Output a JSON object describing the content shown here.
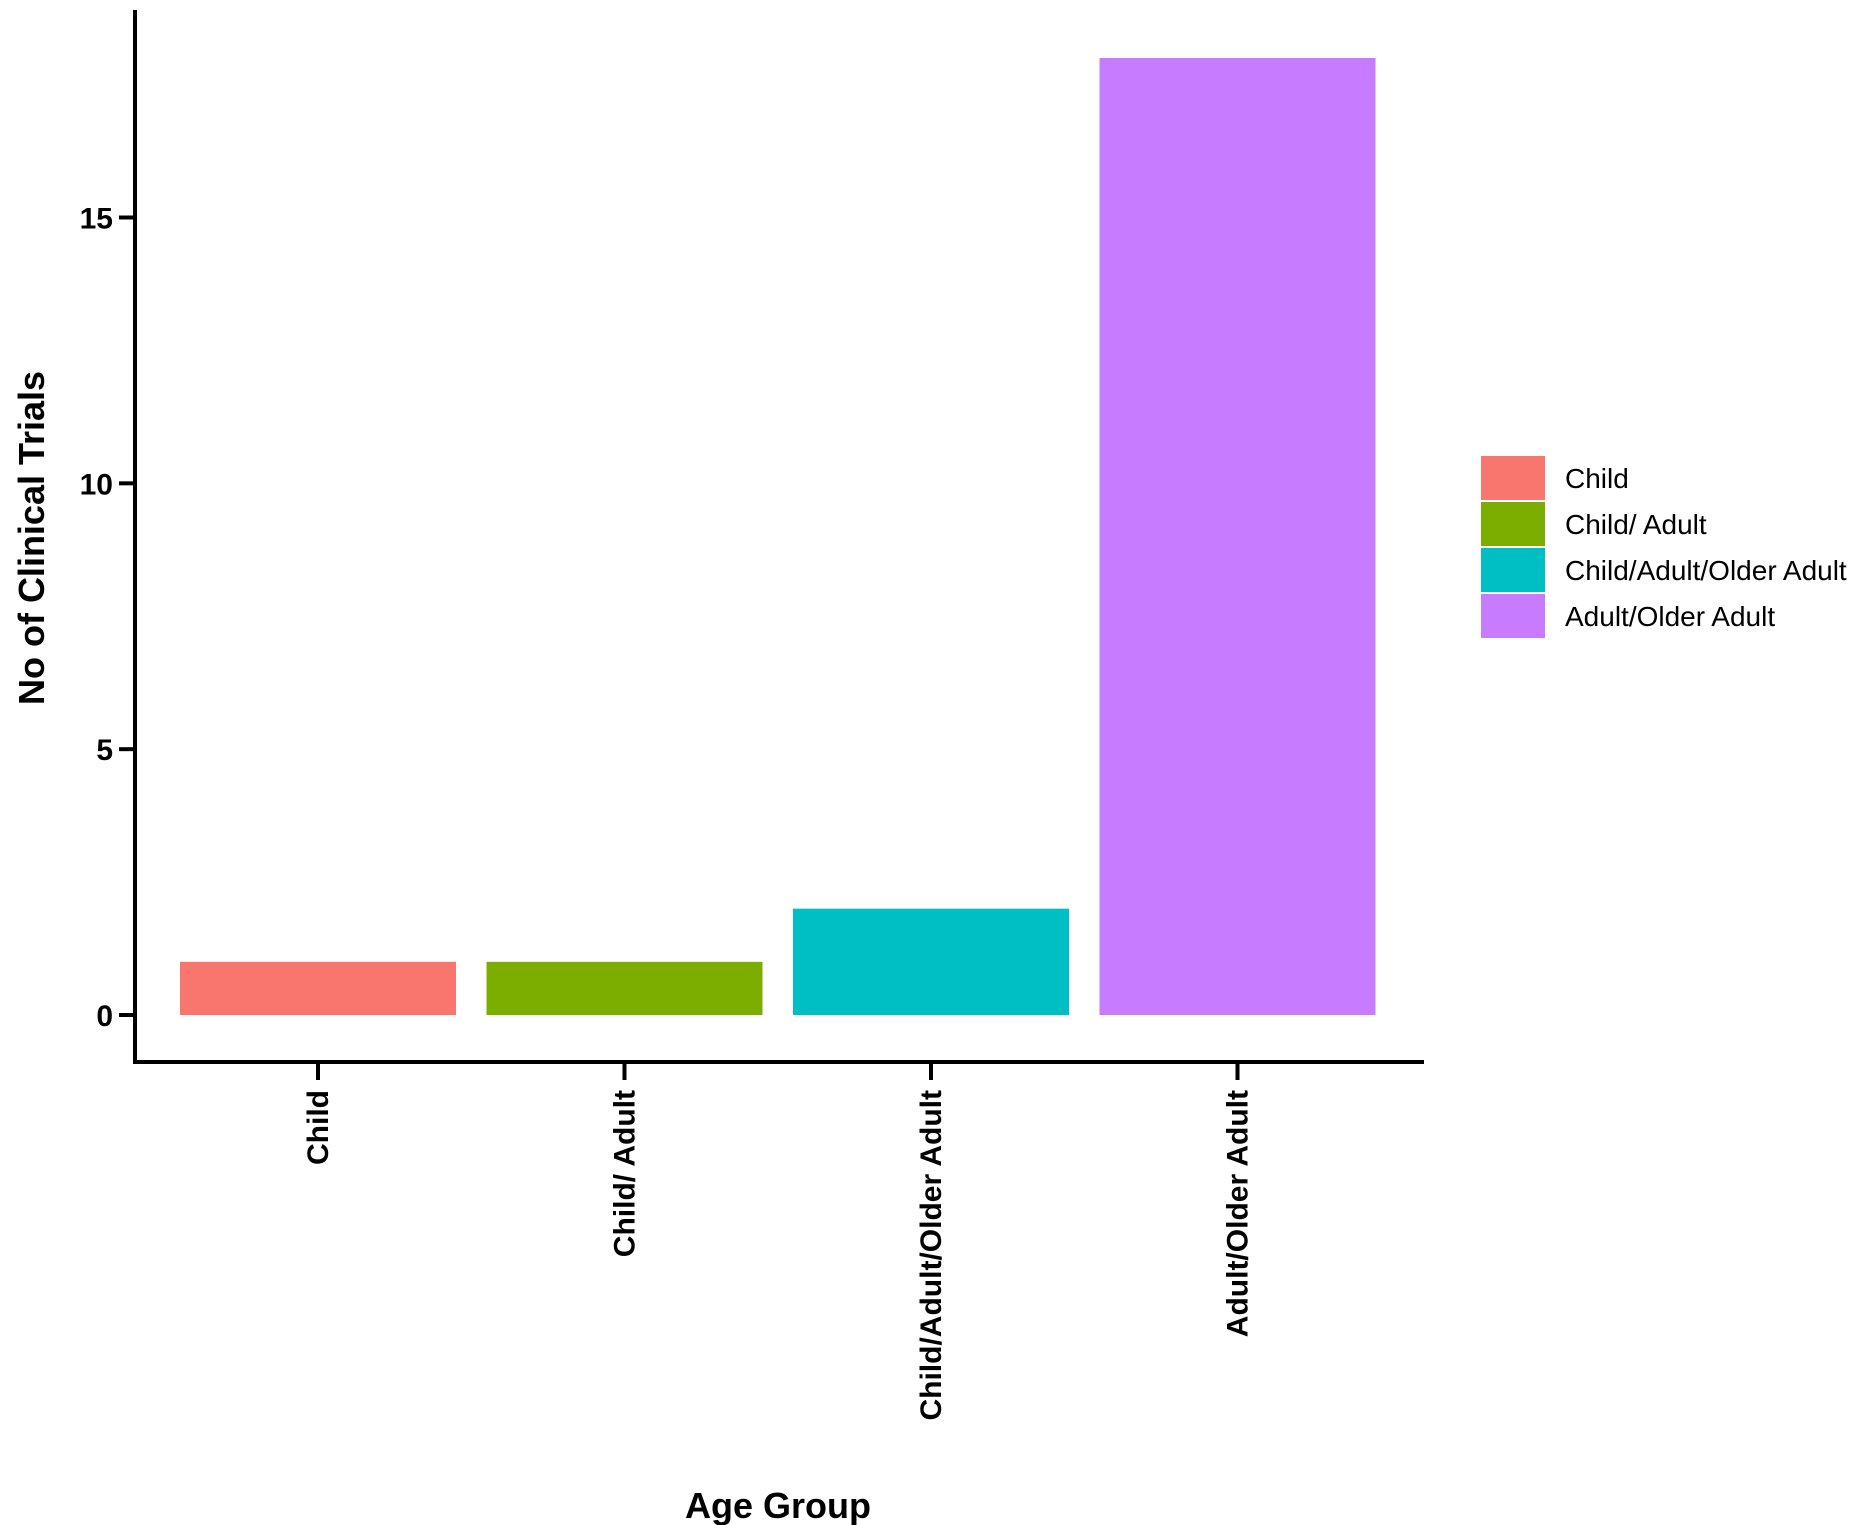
{
  "chart_data": {
    "type": "bar",
    "categories": [
      "Child",
      "Child/ Adult",
      "Child/Adult/Older Adult",
      "Adult/Older Adult"
    ],
    "values": [
      1,
      1,
      2,
      18
    ],
    "colors": [
      "#F8766D",
      "#7CAE00",
      "#00BFC4",
      "#C77CFF"
    ],
    "xlabel": "Age Group",
    "ylabel": "No of Clinical Trials",
    "ylim": [
      0,
      18
    ],
    "yticks": [
      0,
      5,
      10,
      15
    ],
    "grid": false,
    "legend": {
      "placement": "right",
      "entries": [
        "Child",
        "Child/ Adult",
        "Child/Adult/Older Adult",
        "Adult/Older Adult"
      ]
    }
  }
}
